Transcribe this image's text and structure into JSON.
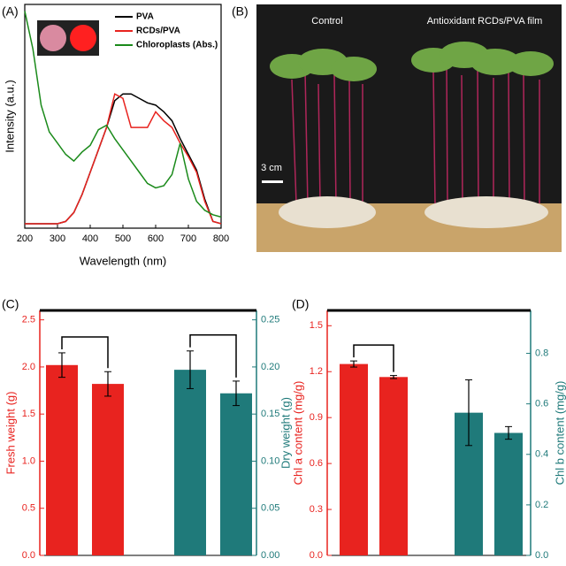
{
  "chart_data": [
    {
      "type": "line",
      "panel_label": "(A)",
      "xlabel": "Wavelength (nm)",
      "ylabel": "Intensity (a.u.)",
      "xlim": [
        200,
        800
      ],
      "xticks": [
        200,
        300,
        400,
        500,
        600,
        700,
        800
      ],
      "ylim": [
        0,
        1
      ],
      "x": [
        200,
        225,
        250,
        275,
        300,
        325,
        350,
        375,
        400,
        425,
        450,
        475,
        500,
        525,
        550,
        575,
        600,
        625,
        650,
        675,
        700,
        725,
        750,
        775,
        800
      ],
      "series": [
        {
          "name": "PVA",
          "color": "#000000",
          "values": [
            0.02,
            0.02,
            0.02,
            0.02,
            0.02,
            0.03,
            0.07,
            0.15,
            0.25,
            0.35,
            0.45,
            0.57,
            0.6,
            0.6,
            0.58,
            0.56,
            0.55,
            0.52,
            0.48,
            0.4,
            0.33,
            0.26,
            0.13,
            0.03,
            0.02
          ]
        },
        {
          "name": "RCDs/PVA",
          "color": "#e8231f",
          "values": [
            0.02,
            0.02,
            0.02,
            0.02,
            0.02,
            0.03,
            0.07,
            0.15,
            0.25,
            0.35,
            0.45,
            0.6,
            0.58,
            0.45,
            0.45,
            0.45,
            0.52,
            0.48,
            0.45,
            0.38,
            0.32,
            0.25,
            0.12,
            0.03,
            0.02
          ]
        },
        {
          "name": "Chloroplasts (Abs.)",
          "color": "#1a8a1a",
          "values": [
            0.97,
            0.8,
            0.55,
            0.43,
            0.38,
            0.33,
            0.3,
            0.34,
            0.37,
            0.44,
            0.46,
            0.4,
            0.35,
            0.3,
            0.25,
            0.2,
            0.18,
            0.19,
            0.24,
            0.38,
            0.22,
            0.12,
            0.08,
            0.06,
            0.05
          ]
        }
      ]
    },
    {
      "type": "bar",
      "panel_label": "(C)",
      "ylabel": "Fresh weight (g)",
      "y2label": "Dry weight (g)",
      "categories": [
        null,
        null,
        null,
        null
      ],
      "ylim": [
        0,
        2.6
      ],
      "yticks": [
        {
          "value": 0,
          "label": "0.0"
        },
        0.5,
        {
          "value": 1,
          "label": "1.0"
        },
        1.5,
        {
          "value": 2,
          "label": "2.0"
        },
        2.5
      ],
      "y2lim": [
        0,
        0.26
      ],
      "y2ticks": [
        {
          "value": 0,
          "label": "0.00"
        },
        0.05,
        {
          "value": 0.1,
          "label": "0.10"
        },
        0.15,
        {
          "value": 0.2,
          "label": "0.20"
        },
        0.25
      ],
      "series": [
        {
          "color": "#e8231f",
          "values": [
            2.02,
            1.82,
            null,
            null
          ],
          "errors": [
            0.13,
            0.13,
            null,
            null
          ]
        },
        {
          "color": "#1f7a7a",
          "axis": "y2",
          "values": [
            null,
            null,
            0.197,
            0.172
          ],
          "errors": [
            null,
            null,
            0.02,
            0.013
          ]
        }
      ]
    },
    {
      "type": "bar",
      "panel_label": "(D)",
      "ylabel": "Chl a content (mg/g)",
      "y2label": "Chl b content (mg/g)",
      "categories": [
        null,
        null,
        null,
        null
      ],
      "ylim": [
        0,
        1.6
      ],
      "yticks": [
        {
          "value": 0,
          "label": "0.0"
        },
        0.3,
        0.6,
        0.9,
        1.2,
        1.5
      ],
      "y2lim": [
        0,
        0.97
      ],
      "y2ticks": [
        {
          "value": 0,
          "label": "0.0"
        },
        0.2,
        0.4,
        0.6,
        0.8
      ],
      "series": [
        {
          "color": "#e8231f",
          "values": [
            1.25,
            1.165,
            null,
            null
          ],
          "errors": [
            0.02,
            0.01,
            null,
            null
          ]
        },
        {
          "color": "#1f7a7a",
          "axis": "y2",
          "values": [
            null,
            null,
            0.565,
            0.485
          ],
          "errors": [
            null,
            null,
            0.13,
            0.025
          ]
        }
      ]
    }
  ],
  "photo": {
    "panel_label": "(B)",
    "left_label": "Control",
    "right_label": "Antioxidant RCDs/PVA film",
    "scale_label": "3 cm"
  }
}
